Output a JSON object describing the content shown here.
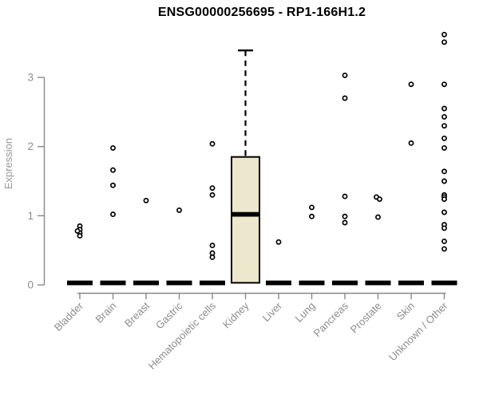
{
  "chart_data": {
    "type": "boxplot",
    "title": "ENSG00000256695 - RP1-166H1.2",
    "xlabel": "",
    "ylabel": "Expression",
    "yticks": [
      0,
      1,
      2,
      3
    ],
    "ylim": [
      0,
      3.65
    ],
    "grid": false,
    "legend": "none",
    "background": "#ffffff",
    "colors": {
      "box_fill": "#ece7cd",
      "box_stroke": "#000000",
      "median": "#000000",
      "zero_bar": "#000000",
      "point_fill": "#ffffff",
      "point_stroke": "#000000",
      "axis": "#888888",
      "tick_label": "#8c8c8c",
      "axis_label": "#999999",
      "title": "#000000"
    },
    "categories": [
      "Bladder",
      "Brain",
      "Breast",
      "Gastric",
      "Hematopoietic cells",
      "Kidney",
      "Liver",
      "Lung",
      "Pancreas",
      "Prostate",
      "Skin",
      "Unknown / Other"
    ],
    "groups": [
      {
        "name": "Bladder",
        "collapsed": true,
        "box": {
          "min": 0,
          "q1": 0,
          "median": 0,
          "q3": 0,
          "max": 0
        },
        "points": [
          {
            "v": 0.85
          },
          {
            "v": 0.8
          },
          {
            "v": 0.75
          },
          {
            "v": 0.71
          },
          {
            "v": 0.78,
            "dx": -3
          }
        ]
      },
      {
        "name": "Brain",
        "collapsed": true,
        "box": {
          "min": 0,
          "q1": 0,
          "median": 0,
          "q3": 0,
          "max": 0
        },
        "points": [
          1.98,
          1.66,
          1.44,
          1.02
        ]
      },
      {
        "name": "Breast",
        "collapsed": true,
        "box": {
          "min": 0,
          "q1": 0,
          "median": 0,
          "q3": 0,
          "max": 0
        },
        "points": [
          1.22
        ]
      },
      {
        "name": "Gastric",
        "collapsed": true,
        "box": {
          "min": 0,
          "q1": 0,
          "median": 0,
          "q3": 0,
          "max": 0
        },
        "points": [
          1.08
        ]
      },
      {
        "name": "Hematopoietic cells",
        "collapsed": true,
        "box": {
          "min": 0,
          "q1": 0,
          "median": 0,
          "q3": 0,
          "max": 0
        },
        "points": [
          2.04,
          1.4,
          1.3,
          0.57,
          0.46,
          0.4
        ]
      },
      {
        "name": "Kidney",
        "collapsed": false,
        "box": {
          "min": 0.03,
          "q1": 0.03,
          "median": 1.02,
          "q3": 1.85,
          "max": 3.39
        },
        "points": []
      },
      {
        "name": "Liver",
        "collapsed": true,
        "box": {
          "min": 0,
          "q1": 0,
          "median": 0,
          "q3": 0,
          "max": 0
        },
        "points": [
          0.62
        ]
      },
      {
        "name": "Lung",
        "collapsed": true,
        "box": {
          "min": 0,
          "q1": 0,
          "median": 0,
          "q3": 0,
          "max": 0
        },
        "points": [
          1.12,
          0.99
        ]
      },
      {
        "name": "Pancreas",
        "collapsed": true,
        "box": {
          "min": 0,
          "q1": 0,
          "median": 0,
          "q3": 0,
          "max": 0
        },
        "points": [
          3.03,
          2.7,
          1.28,
          0.99,
          0.9
        ]
      },
      {
        "name": "Prostate",
        "collapsed": true,
        "box": {
          "min": 0,
          "q1": 0,
          "median": 0,
          "q3": 0,
          "max": 0
        },
        "points": [
          {
            "v": 1.27,
            "dx": -2
          },
          {
            "v": 1.24,
            "dx": 2
          },
          {
            "v": 0.98
          }
        ]
      },
      {
        "name": "Skin",
        "collapsed": true,
        "box": {
          "min": 0,
          "q1": 0,
          "median": 0,
          "q3": 0,
          "max": 0
        },
        "points": [
          2.9,
          2.05
        ]
      },
      {
        "name": "Unknown / Other",
        "collapsed": true,
        "box": {
          "min": 0,
          "q1": 0,
          "median": 0,
          "q3": 0,
          "max": 0
        },
        "points": [
          3.62,
          3.51,
          2.9,
          2.55,
          2.43,
          2.3,
          2.12,
          1.98,
          1.64,
          1.5,
          {
            "v": 1.3
          },
          {
            "v": 1.27
          },
          {
            "v": 1.24
          },
          1.05,
          0.87,
          0.82,
          0.63,
          0.52
        ]
      }
    ]
  }
}
